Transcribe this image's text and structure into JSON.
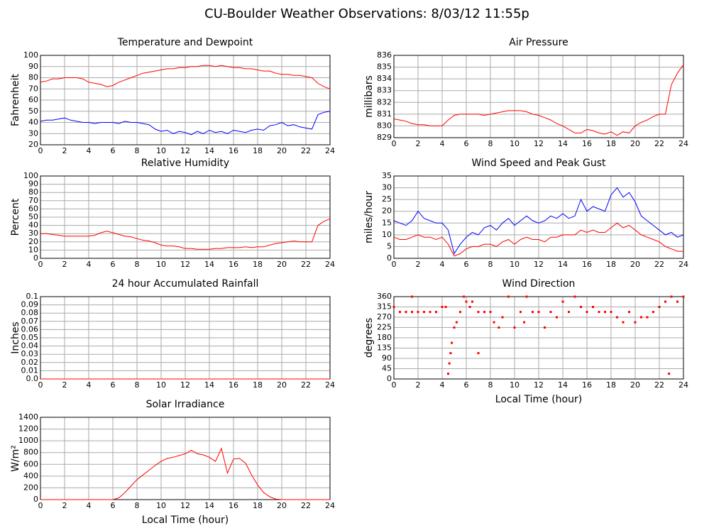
{
  "title": "CU-Boulder Weather Observations: 8/03/12 11:55p",
  "chart_data": [
    {
      "type": "line",
      "title": "Temperature and Dewpoint",
      "y_label": "Fahrenheit",
      "x": [
        0,
        0.5,
        1,
        1.5,
        2,
        2.5,
        3,
        3.5,
        4,
        4.5,
        5,
        5.5,
        6,
        6.5,
        7,
        7.5,
        8,
        8.5,
        9,
        9.5,
        10,
        10.5,
        11,
        11.5,
        12,
        12.5,
        13,
        13.5,
        14,
        14.5,
        15,
        15.5,
        16,
        16.5,
        17,
        17.5,
        18,
        18.5,
        19,
        19.5,
        20,
        20.5,
        21,
        21.5,
        22,
        22.5,
        23,
        23.5,
        24
      ],
      "series": [
        {
          "color": "#ff0000",
          "values": [
            76,
            77,
            79,
            79,
            80,
            80,
            80,
            79,
            76,
            75,
            74,
            72,
            73,
            76,
            78,
            80,
            82,
            84,
            85,
            86,
            87,
            88,
            88,
            89,
            89,
            90,
            90,
            91,
            91,
            90,
            91,
            90,
            89,
            89,
            88,
            88,
            87,
            86,
            86,
            84,
            83,
            83,
            82,
            82,
            81,
            80,
            75,
            72,
            70
          ]
        },
        {
          "color": "#0000ff",
          "values": [
            41,
            42,
            42,
            43,
            44,
            42,
            41,
            40,
            40,
            39,
            40,
            40,
            40,
            39,
            41,
            40,
            40,
            39,
            38,
            34,
            32,
            33,
            30,
            32,
            31,
            29,
            32,
            30,
            33,
            31,
            32,
            30,
            33,
            32,
            31,
            33,
            34,
            33,
            37,
            38,
            40,
            37,
            38,
            36,
            35,
            34,
            47,
            49,
            50
          ]
        }
      ],
      "xlim": [
        0,
        24
      ],
      "xticks": [
        0,
        2,
        4,
        6,
        8,
        10,
        12,
        14,
        16,
        18,
        20,
        22,
        24
      ],
      "ylim": [
        20,
        100
      ],
      "yticks": [
        20,
        30,
        40,
        50,
        60,
        70,
        80,
        90,
        100
      ],
      "grid": true
    },
    {
      "type": "line",
      "title": "Air Pressure",
      "y_label": "millibars",
      "x": [
        0,
        0.5,
        1,
        1.5,
        2,
        2.5,
        3,
        3.5,
        4,
        4.5,
        5,
        5.5,
        6,
        6.5,
        7,
        7.5,
        8,
        8.5,
        9,
        9.5,
        10,
        10.5,
        11,
        11.5,
        12,
        12.5,
        13,
        13.5,
        14,
        14.5,
        15,
        15.5,
        16,
        16.5,
        17,
        17.5,
        18,
        18.5,
        19,
        19.5,
        20,
        20.5,
        21,
        21.5,
        22,
        22.5,
        23,
        23.5,
        24
      ],
      "series": [
        {
          "color": "#ff0000",
          "values": [
            830.6,
            830.5,
            830.4,
            830.2,
            830.1,
            830.1,
            830.0,
            830.0,
            830.0,
            830.5,
            830.9,
            831.0,
            831.0,
            831.0,
            831.0,
            830.9,
            831.0,
            831.1,
            831.2,
            831.3,
            831.3,
            831.3,
            831.2,
            831.0,
            830.9,
            830.7,
            830.5,
            830.2,
            830.0,
            829.7,
            829.4,
            829.4,
            829.7,
            829.6,
            829.4,
            829.3,
            829.5,
            829.2,
            829.5,
            829.4,
            830.0,
            830.3,
            830.5,
            830.8,
            831.0,
            831.0,
            833.5,
            834.5,
            835.2
          ]
        }
      ],
      "xlim": [
        0,
        24
      ],
      "xticks": [
        0,
        2,
        4,
        6,
        8,
        10,
        12,
        14,
        16,
        18,
        20,
        22,
        24
      ],
      "ylim": [
        829,
        836
      ],
      "yticks": [
        829,
        830,
        831,
        832,
        833,
        834,
        835,
        836
      ],
      "grid": true
    },
    {
      "type": "line",
      "title": "Relative Humidity",
      "y_label": "Percent",
      "x": [
        0,
        0.5,
        1,
        1.5,
        2,
        2.5,
        3,
        3.5,
        4,
        4.5,
        5,
        5.5,
        6,
        6.5,
        7,
        7.5,
        8,
        8.5,
        9,
        9.5,
        10,
        10.5,
        11,
        11.5,
        12,
        12.5,
        13,
        13.5,
        14,
        14.5,
        15,
        15.5,
        16,
        16.5,
        17,
        17.5,
        18,
        18.5,
        19,
        19.5,
        20,
        20.5,
        21,
        21.5,
        22,
        22.5,
        23,
        23.5,
        24
      ],
      "series": [
        {
          "color": "#ff0000",
          "values": [
            30,
            30,
            29,
            28,
            27,
            27,
            27,
            27,
            27,
            28,
            31,
            33,
            31,
            29,
            27,
            26,
            24,
            22,
            21,
            19,
            16,
            15,
            15,
            14,
            12,
            12,
            11,
            11,
            11,
            12,
            12,
            13,
            13,
            13,
            14,
            13,
            14,
            14,
            16,
            18,
            19,
            20,
            21,
            20,
            20,
            20,
            40,
            45,
            48
          ]
        }
      ],
      "xlim": [
        0,
        24
      ],
      "xticks": [
        0,
        2,
        4,
        6,
        8,
        10,
        12,
        14,
        16,
        18,
        20,
        22,
        24
      ],
      "ylim": [
        0,
        100
      ],
      "yticks": [
        0,
        10,
        20,
        30,
        40,
        50,
        60,
        70,
        80,
        90,
        100
      ],
      "grid": true
    },
    {
      "type": "line",
      "title": "Wind Speed and Peak Gust",
      "y_label": "miles/hour",
      "x": [
        0,
        0.5,
        1,
        1.5,
        2,
        2.5,
        3,
        3.5,
        4,
        4.5,
        5,
        5.5,
        6,
        6.5,
        7,
        7.5,
        8,
        8.5,
        9,
        9.5,
        10,
        10.5,
        11,
        11.5,
        12,
        12.5,
        13,
        13.5,
        14,
        14.5,
        15,
        15.5,
        16,
        16.5,
        17,
        17.5,
        18,
        18.5,
        19,
        19.5,
        20,
        20.5,
        21,
        21.5,
        22,
        22.5,
        23,
        23.5,
        24
      ],
      "series": [
        {
          "color": "#0000ff",
          "values": [
            16,
            15,
            14,
            16,
            20,
            17,
            16,
            15,
            15,
            12,
            2,
            6,
            9,
            11,
            10,
            13,
            14,
            12,
            15,
            17,
            14,
            16,
            18,
            16,
            15,
            16,
            18,
            17,
            19,
            17,
            18,
            25,
            20,
            22,
            21,
            20,
            27,
            30,
            26,
            28,
            24,
            18,
            16,
            14,
            12,
            10,
            11,
            9,
            10
          ]
        },
        {
          "color": "#ff0000",
          "values": [
            9,
            8,
            8,
            9,
            10,
            9,
            9,
            8,
            9,
            6,
            1,
            2,
            4,
            5,
            5,
            6,
            6,
            5,
            7,
            8,
            6,
            8,
            9,
            8,
            8,
            7,
            9,
            9,
            10,
            10,
            10,
            12,
            11,
            12,
            11,
            11,
            13,
            15,
            13,
            14,
            12,
            10,
            9,
            8,
            7,
            5,
            4,
            3,
            3
          ]
        }
      ],
      "xlim": [
        0,
        24
      ],
      "xticks": [
        0,
        2,
        4,
        6,
        8,
        10,
        12,
        14,
        16,
        18,
        20,
        22,
        24
      ],
      "ylim": [
        0,
        35
      ],
      "yticks": [
        0,
        5,
        10,
        15,
        20,
        25,
        30,
        35
      ],
      "grid": true
    },
    {
      "type": "line",
      "title": "24 hour Accumulated Rainfall",
      "y_label": "Inches",
      "x": [
        0,
        24
      ],
      "series": [
        {
          "color": "#ff0000",
          "values": [
            0,
            0
          ]
        }
      ],
      "xlim": [
        0,
        24
      ],
      "xticks": [
        0,
        2,
        4,
        6,
        8,
        10,
        12,
        14,
        16,
        18,
        20,
        22,
        24
      ],
      "ylim": [
        0,
        0.1
      ],
      "yticks": [
        {
          "value": 0,
          "label": "0.0"
        },
        0.01,
        0.02,
        0.03,
        0.04,
        0.05,
        0.06,
        0.07,
        0.08,
        0.09,
        0.1
      ],
      "grid": true
    },
    {
      "type": "scatter",
      "title": "Wind Direction",
      "y_label": "degrees",
      "x_label": "Local Time (hour)",
      "x": [
        0,
        0.5,
        1,
        1.5,
        1.5,
        2,
        2.5,
        3,
        3.5,
        4,
        4.3,
        4.5,
        4.6,
        4.7,
        4.8,
        5,
        5.2,
        5.5,
        5.8,
        6,
        6.3,
        6.5,
        7,
        7,
        7.5,
        8,
        8.3,
        8.7,
        9,
        9.5,
        10,
        10.5,
        10.8,
        11,
        11.5,
        12,
        12.5,
        13,
        13.5,
        14,
        14.5,
        15,
        15.5,
        16,
        16.5,
        17,
        17.5,
        18,
        18.5,
        19,
        19.5,
        20,
        20.5,
        21,
        21.5,
        22,
        22.5,
        22.8,
        23,
        23.5,
        24
      ],
      "values": [
        315,
        293,
        293,
        293,
        360,
        293,
        293,
        293,
        293,
        315,
        315,
        23,
        68,
        113,
        158,
        225,
        248,
        293,
        360,
        338,
        315,
        338,
        113,
        293,
        293,
        293,
        248,
        225,
        270,
        360,
        225,
        293,
        248,
        360,
        293,
        293,
        225,
        293,
        270,
        338,
        293,
        360,
        315,
        293,
        315,
        293,
        293,
        293,
        270,
        248,
        293,
        248,
        270,
        270,
        293,
        315,
        338,
        23,
        360,
        338,
        360
      ],
      "color": "#ff0000",
      "xlim": [
        0,
        24
      ],
      "xticks": [
        0,
        2,
        4,
        6,
        8,
        10,
        12,
        14,
        16,
        18,
        20,
        22,
        24
      ],
      "ylim": [
        0,
        360
      ],
      "yticks": [
        0,
        45,
        90,
        135,
        180,
        225,
        270,
        315,
        360
      ],
      "grid": true
    },
    {
      "type": "line",
      "title": "Solar Irradiance",
      "y_label": "W/m²",
      "x_label": "Local Time (hour)",
      "x": [
        0,
        0.5,
        1,
        1.5,
        2,
        2.5,
        3,
        3.5,
        4,
        4.5,
        5,
        5.5,
        6,
        6.5,
        7,
        7.5,
        8,
        8.5,
        9,
        9.5,
        10,
        10.5,
        11,
        11.5,
        12,
        12.5,
        13,
        13.5,
        14,
        14.5,
        15,
        15.5,
        16,
        16.5,
        17,
        17.5,
        18,
        18.5,
        19,
        19.5,
        20,
        20.5,
        21,
        21.5,
        22,
        22.5,
        23,
        23.5,
        24
      ],
      "series": [
        {
          "color": "#ff0000",
          "values": [
            0,
            0,
            0,
            0,
            0,
            0,
            0,
            0,
            0,
            0,
            0,
            0,
            0,
            30,
            120,
            230,
            340,
            420,
            500,
            580,
            650,
            700,
            720,
            750,
            780,
            840,
            780,
            760,
            720,
            650,
            870,
            450,
            690,
            700,
            620,
            420,
            250,
            120,
            50,
            10,
            0,
            0,
            0,
            0,
            0,
            0,
            0,
            0,
            0
          ]
        }
      ],
      "xlim": [
        0,
        24
      ],
      "xticks": [
        0,
        2,
        4,
        6,
        8,
        10,
        12,
        14,
        16,
        18,
        20,
        22,
        24
      ],
      "ylim": [
        0,
        1400
      ],
      "yticks": [
        0,
        200,
        400,
        600,
        800,
        1000,
        1200,
        1400
      ],
      "grid": true
    }
  ]
}
